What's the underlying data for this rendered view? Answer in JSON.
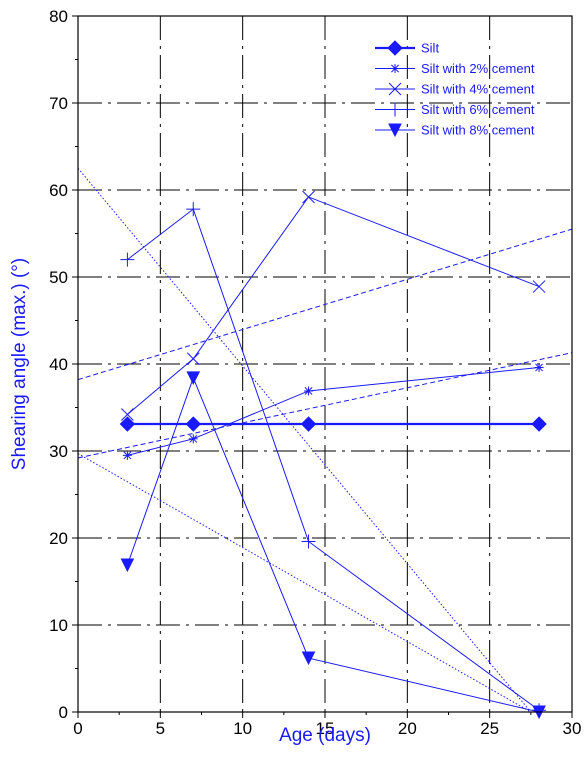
{
  "chart_data": {
    "type": "line",
    "title": "",
    "xlabel": "Age (days)",
    "ylabel": "Shearing angle (max.) (°)",
    "xlim": [
      0,
      30
    ],
    "ylim": [
      0,
      80
    ],
    "xticks": [
      0,
      5,
      10,
      15,
      20,
      25,
      30
    ],
    "yticks": [
      0,
      10,
      20,
      30,
      40,
      50,
      60,
      70,
      80
    ],
    "grid": true,
    "legend_position": "top-right",
    "color": "#1a1aff",
    "series": [
      {
        "name": "Silt",
        "marker": "diamond",
        "x": [
          3,
          7,
          14,
          28
        ],
        "y": [
          33.1,
          33.1,
          33.1,
          33.1
        ]
      },
      {
        "name": "Silt with 2% cement",
        "marker": "asterisk",
        "x": [
          3,
          7,
          14,
          28
        ],
        "y": [
          29.5,
          31.4,
          36.9,
          39.6
        ]
      },
      {
        "name": "Silt with 4% cement",
        "marker": "x",
        "x": [
          3,
          7,
          14,
          28
        ],
        "y": [
          34.2,
          40.6,
          59.2,
          48.9
        ]
      },
      {
        "name": "Silt with 6% cement",
        "marker": "plus",
        "x": [
          3,
          7,
          14,
          28
        ],
        "y": [
          52.0,
          57.8,
          19.6,
          0.2
        ]
      },
      {
        "name": "Silt with 8% cement",
        "marker": "triangle-down",
        "x": [
          3,
          7,
          14,
          28
        ],
        "y": [
          16.9,
          38.4,
          6.2,
          0
        ]
      }
    ],
    "trend_lines": [
      {
        "style": "dashed",
        "x": [
          0,
          30
        ],
        "y": [
          38.2,
          55.5
        ]
      },
      {
        "style": "dashed",
        "x": [
          0,
          30
        ],
        "y": [
          29.2,
          41.3
        ]
      },
      {
        "style": "dotted",
        "x": [
          0,
          27.5
        ],
        "y": [
          62.5,
          0
        ]
      },
      {
        "style": "dotted",
        "x": [
          0,
          27.5
        ],
        "y": [
          29.7,
          0
        ]
      }
    ]
  }
}
